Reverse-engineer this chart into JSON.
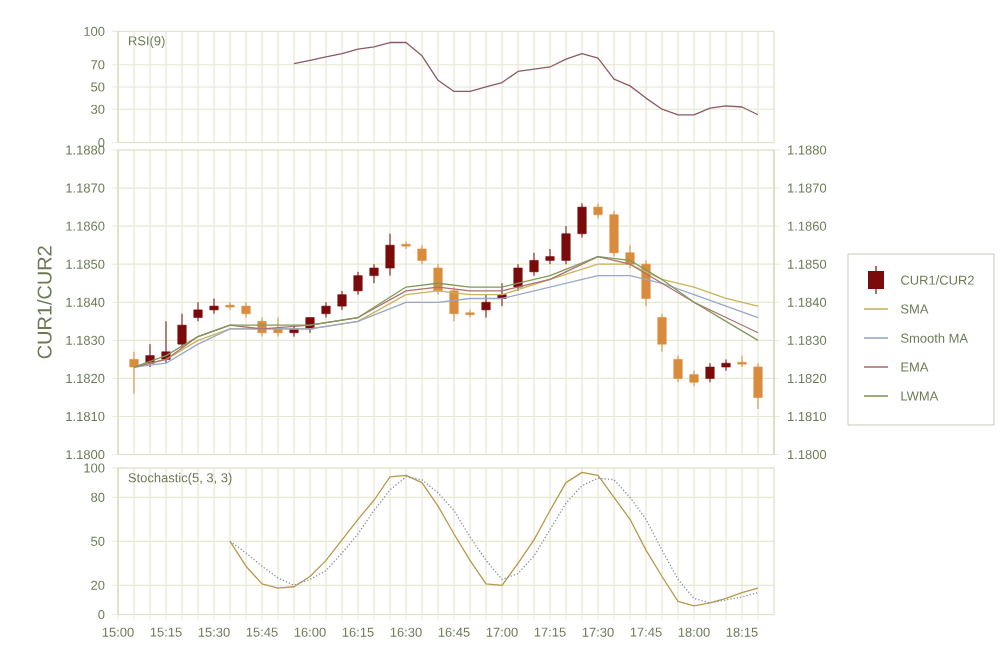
{
  "chart_data": [
    {
      "type": "line",
      "title": "RSI(9)",
      "xlim": [
        15,
        18.4167
      ],
      "ylim": [
        0,
        100
      ],
      "yticks": [
        0,
        30,
        50,
        70,
        100
      ],
      "tick_labels": "y",
      "grid": true,
      "xticks": [
        15,
        15.0833,
        15.1667,
        15.25,
        15.3333,
        15.4167,
        15.5,
        15.5833,
        15.6667,
        15.75,
        15.8333,
        15.9167,
        16,
        16.0833,
        16.1667,
        16.25,
        16.3333,
        16.4167,
        16.5,
        16.5833,
        16.6667,
        16.75,
        16.8333,
        16.9167,
        17,
        17.0833,
        17.1667,
        17.25,
        17.3333,
        17.4167,
        17.5,
        17.5833,
        17.6667,
        17.75,
        17.8333,
        17.9167,
        18,
        18.0833,
        18.1667,
        18.25,
        18.3333
      ],
      "x": [
        15.9167,
        16,
        16.0833,
        16.1667,
        16.25,
        16.3333,
        16.4167,
        16.5,
        16.5833,
        16.6667,
        16.75,
        16.8333,
        16.9167,
        17,
        17.0833,
        17.1667,
        17.25,
        17.3333,
        17.4167,
        17.5,
        17.5833,
        17.6667,
        17.75,
        17.8333,
        17.9167,
        18,
        18.0833,
        18.1667,
        18.25,
        18.3333
      ],
      "values": [
        71,
        74,
        77,
        80,
        84,
        86,
        90,
        90,
        78,
        56,
        46,
        46,
        50,
        54,
        64,
        66,
        68,
        75,
        80,
        76,
        57,
        51,
        40,
        30,
        25,
        25,
        31,
        33,
        32,
        25
      ],
      "color": "#8c5a64"
    },
    {
      "type": "candlestick",
      "ylabel": "CUR1/CUR2",
      "xlim": [
        15,
        18.4167
      ],
      "ylim": [
        1.18,
        1.188
      ],
      "tick_labels": "y",
      "grid": true,
      "legend": "right",
      "xticks": [
        15,
        15.0833,
        15.1667,
        15.25,
        15.3333,
        15.4167,
        15.5,
        15.5833,
        15.6667,
        15.75,
        15.8333,
        15.9167,
        16,
        16.0833,
        16.1667,
        16.25,
        16.3333,
        16.4167,
        16.5,
        16.5833,
        16.6667,
        16.75,
        16.8333,
        16.9167,
        17,
        17.0833,
        17.1667,
        17.25,
        17.3333,
        17.4167,
        17.5,
        17.5833,
        17.6667,
        17.75,
        17.8333,
        17.9167,
        18,
        18.0833,
        18.1667,
        18.25,
        18.3333
      ],
      "yticks": [
        {
          "value": 1.18,
          "label": "1.1800"
        },
        {
          "value": 1.181,
          "label": "1.1810"
        },
        {
          "value": 1.182,
          "label": "1.1820"
        },
        {
          "value": 1.183,
          "label": "1.1830"
        },
        {
          "value": 1.184,
          "label": "1.1840"
        },
        {
          "value": 1.185,
          "label": "1.1850"
        },
        {
          "value": 1.186,
          "label": "1.1860"
        },
        {
          "value": 1.187,
          "label": "1.1870"
        },
        {
          "value": 1.188,
          "label": "1.1880"
        }
      ],
      "y2lim": [
        1.18,
        1.188
      ],
      "y2ticks": [
        {
          "value": 1.18,
          "label": "1.1800"
        },
        {
          "value": 1.181,
          "label": "1.1810"
        },
        {
          "value": 1.182,
          "label": "1.1820"
        },
        {
          "value": 1.183,
          "label": "1.1830"
        },
        {
          "value": 1.184,
          "label": "1.1840"
        },
        {
          "value": 1.185,
          "label": "1.1850"
        },
        {
          "value": 1.186,
          "label": "1.1860"
        },
        {
          "value": 1.187,
          "label": "1.1870"
        },
        {
          "value": 1.188,
          "label": "1.1880"
        }
      ],
      "series": [
        {
          "name": "CUR1/CUR2",
          "type": "candlestick",
          "color": "#7b0a0a",
          "x": [
            15.0833,
            15.1667,
            15.25,
            15.3333,
            15.4167,
            15.5,
            15.5833,
            15.6667,
            15.75,
            15.8333,
            15.9167,
            16,
            16.0833,
            16.1667,
            16.25,
            16.3333,
            16.4167,
            16.5,
            16.5833,
            16.6667,
            16.75,
            16.8333,
            16.9167,
            17,
            17.0833,
            17.1667,
            17.25,
            17.3333,
            17.4167,
            17.5,
            17.5833,
            17.6667,
            17.75,
            17.8333,
            17.9167,
            18,
            18.0833,
            18.1667,
            18.25,
            18.3333
          ],
          "ohlc": [
            [
              1.1825,
              1.1827,
              1.1816,
              1.1823
            ],
            [
              1.1824,
              1.1829,
              1.1823,
              1.1826
            ],
            [
              1.1825,
              1.1835,
              1.1824,
              1.1827
            ],
            [
              1.1829,
              1.1837,
              1.1828,
              1.1834
            ],
            [
              1.1836,
              1.184,
              1.1835,
              1.1838
            ],
            [
              1.1838,
              1.1841,
              1.1837,
              1.1839
            ],
            [
              1.1839,
              1.184,
              1.1838,
              1.1839
            ],
            [
              1.1839,
              1.184,
              1.1836,
              1.1837
            ],
            [
              1.1835,
              1.1836,
              1.1831,
              1.1832
            ],
            [
              1.1833,
              1.1836,
              1.1831,
              1.1832
            ],
            [
              1.1832,
              1.1834,
              1.1831,
              1.1833
            ],
            [
              1.1833,
              1.1836,
              1.1832,
              1.1836
            ],
            [
              1.1837,
              1.184,
              1.1836,
              1.1839
            ],
            [
              1.1839,
              1.1843,
              1.1838,
              1.1842
            ],
            [
              1.1843,
              1.1848,
              1.1842,
              1.1847
            ],
            [
              1.1847,
              1.185,
              1.1845,
              1.1849
            ],
            [
              1.1849,
              1.1858,
              1.1847,
              1.1855
            ],
            [
              1.1855,
              1.1856,
              1.1854,
              1.1855
            ],
            [
              1.1854,
              1.1855,
              1.185,
              1.1851
            ],
            [
              1.1849,
              1.185,
              1.1842,
              1.1843
            ],
            [
              1.1843,
              1.1844,
              1.1835,
              1.1837
            ],
            [
              1.1837,
              1.1838,
              1.1836,
              1.1837
            ],
            [
              1.1838,
              1.1842,
              1.1836,
              1.184
            ],
            [
              1.1841,
              1.1845,
              1.1839,
              1.1842
            ],
            [
              1.1844,
              1.185,
              1.1843,
              1.1849
            ],
            [
              1.1848,
              1.1853,
              1.1847,
              1.1851
            ],
            [
              1.1851,
              1.1854,
              1.185,
              1.1852
            ],
            [
              1.1851,
              1.186,
              1.185,
              1.1858
            ],
            [
              1.1858,
              1.1866,
              1.1857,
              1.1865
            ],
            [
              1.1865,
              1.1866,
              1.1862,
              1.1863
            ],
            [
              1.1863,
              1.1864,
              1.1852,
              1.1853
            ],
            [
              1.1853,
              1.1855,
              1.1849,
              1.185
            ],
            [
              1.185,
              1.1851,
              1.1839,
              1.1841
            ],
            [
              1.1836,
              1.1837,
              1.1827,
              1.1829
            ],
            [
              1.1825,
              1.1826,
              1.1819,
              1.182
            ],
            [
              1.1821,
              1.1822,
              1.1818,
              1.1819
            ],
            [
              1.182,
              1.1824,
              1.1819,
              1.1823
            ],
            [
              1.1823,
              1.1825,
              1.1822,
              1.1824
            ],
            [
              1.1824,
              1.1826,
              1.1823,
              1.1824
            ],
            [
              1.1823,
              1.1824,
              1.1812,
              1.1815
            ]
          ],
          "colors": [
            "#d98c3c",
            "#7b0a0a",
            "#7b0a0a",
            "#7b0a0a",
            "#7b0a0a",
            "#7b0a0a",
            "#d98c3c",
            "#d98c3c",
            "#d98c3c",
            "#d98c3c",
            "#7b0a0a",
            "#7b0a0a",
            "#7b0a0a",
            "#7b0a0a",
            "#7b0a0a",
            "#7b0a0a",
            "#7b0a0a",
            "#d98c3c",
            "#d98c3c",
            "#d98c3c",
            "#d98c3c",
            "#d98c3c",
            "#7b0a0a",
            "#7b0a0a",
            "#7b0a0a",
            "#7b0a0a",
            "#7b0a0a",
            "#7b0a0a",
            "#7b0a0a",
            "#d98c3c",
            "#d98c3c",
            "#d98c3c",
            "#d98c3c",
            "#d98c3c",
            "#d98c3c",
            "#d98c3c",
            "#7b0a0a",
            "#7b0a0a",
            "#d98c3c",
            "#d98c3c"
          ]
        },
        {
          "name": "SMA",
          "type": "line",
          "color": "#c8b45a",
          "x": [
            15.0833,
            15.25,
            15.4167,
            15.5833,
            15.75,
            16,
            16.25,
            16.5,
            16.6667,
            16.8333,
            17,
            17.25,
            17.5,
            17.6667,
            17.8333,
            18,
            18.1667,
            18.3333
          ],
          "values": [
            1.1823,
            1.1825,
            1.183,
            1.1833,
            1.1833,
            1.1833,
            1.1835,
            1.1842,
            1.1843,
            1.1842,
            1.1842,
            1.1846,
            1.185,
            1.185,
            1.1846,
            1.1844,
            1.1841,
            1.1839
          ]
        },
        {
          "name": "Smooth MA",
          "type": "line",
          "color": "#98a8c8",
          "x": [
            15.0833,
            15.25,
            15.4167,
            15.5833,
            15.75,
            16,
            16.25,
            16.5,
            16.6667,
            16.8333,
            17,
            17.25,
            17.5,
            17.6667,
            17.8333,
            18,
            18.1667,
            18.3333
          ],
          "values": [
            1.1823,
            1.1824,
            1.1829,
            1.1833,
            1.1833,
            1.1833,
            1.1835,
            1.184,
            1.184,
            1.1841,
            1.1841,
            1.1844,
            1.1847,
            1.1847,
            1.1845,
            1.1842,
            1.1839,
            1.1836
          ]
        },
        {
          "name": "EMA",
          "type": "line",
          "color": "#b07070",
          "x": [
            15.0833,
            15.25,
            15.4167,
            15.5833,
            15.75,
            16,
            16.25,
            16.5,
            16.6667,
            16.8333,
            17,
            17.25,
            17.5,
            17.6667,
            17.8333,
            18,
            18.1667,
            18.3333
          ],
          "values": [
            1.1823,
            1.1825,
            1.1831,
            1.1834,
            1.1833,
            1.1834,
            1.1836,
            1.1843,
            1.1844,
            1.1843,
            1.1843,
            1.1846,
            1.1852,
            1.185,
            1.1845,
            1.184,
            1.1836,
            1.1832
          ]
        },
        {
          "name": "LWMA",
          "type": "line",
          "color": "#7f9a58",
          "x": [
            15.0833,
            15.25,
            15.4167,
            15.5833,
            15.75,
            16,
            16.25,
            16.5,
            16.6667,
            16.8333,
            17,
            17.25,
            17.5,
            17.6667,
            17.8333,
            18,
            18.1667,
            18.3333
          ],
          "values": [
            1.1823,
            1.1826,
            1.1831,
            1.1834,
            1.1834,
            1.1834,
            1.1836,
            1.1844,
            1.1845,
            1.1844,
            1.1844,
            1.1847,
            1.1852,
            1.1851,
            1.1846,
            1.184,
            1.1835,
            1.183
          ]
        }
      ]
    },
    {
      "type": "line",
      "title": "Stochastic(5, 3, 3)",
      "xlim": [
        15,
        18.4167
      ],
      "ylim": [
        0,
        100
      ],
      "yticks": [
        0,
        20,
        50,
        80,
        100
      ],
      "grid": true,
      "xticks": [
        {
          "value": 15,
          "label": "15:00"
        },
        {
          "value": 15.0833,
          "label": null
        },
        {
          "value": 15.1667,
          "label": null
        },
        {
          "value": 15.25,
          "label": "15:15"
        },
        {
          "value": 15.3333,
          "label": null
        },
        {
          "value": 15.4167,
          "label": null
        },
        {
          "value": 15.5,
          "label": "15:30"
        },
        {
          "value": 15.5833,
          "label": null
        },
        {
          "value": 15.6667,
          "label": null
        },
        {
          "value": 15.75,
          "label": "15:45"
        },
        {
          "value": 15.8333,
          "label": null
        },
        {
          "value": 15.9167,
          "label": null
        },
        {
          "value": 16,
          "label": "16:00"
        },
        {
          "value": 16.0833,
          "label": null
        },
        {
          "value": 16.1667,
          "label": null
        },
        {
          "value": 16.25,
          "label": "16:15"
        },
        {
          "value": 16.3333,
          "label": null
        },
        {
          "value": 16.4167,
          "label": null
        },
        {
          "value": 16.5,
          "label": "16:30"
        },
        {
          "value": 16.5833,
          "label": null
        },
        {
          "value": 16.6667,
          "label": null
        },
        {
          "value": 16.75,
          "label": "16:45"
        },
        {
          "value": 16.8333,
          "label": null
        },
        {
          "value": 16.9167,
          "label": null
        },
        {
          "value": 17,
          "label": "17:00"
        },
        {
          "value": 17.0833,
          "label": null
        },
        {
          "value": 17.1667,
          "label": null
        },
        {
          "value": 17.25,
          "label": "17:15"
        },
        {
          "value": 17.3333,
          "label": null
        },
        {
          "value": 17.4167,
          "label": null
        },
        {
          "value": 17.5,
          "label": "17:30"
        },
        {
          "value": 17.5833,
          "label": null
        },
        {
          "value": 17.6667,
          "label": null
        },
        {
          "value": 17.75,
          "label": "17:45"
        },
        {
          "value": 17.8333,
          "label": null
        },
        {
          "value": 17.9167,
          "label": null
        },
        {
          "value": 18,
          "label": "18:00"
        },
        {
          "value": 18.0833,
          "label": null
        },
        {
          "value": 18.1667,
          "label": null
        },
        {
          "value": 18.25,
          "label": "18:15"
        },
        {
          "value": 18.3333,
          "label": null
        }
      ],
      "series": [
        {
          "type": "line",
          "color": "#b8984a",
          "line_style": "solid",
          "x": [
            15.5833,
            15.6667,
            15.75,
            15.8333,
            15.9167,
            16,
            16.0833,
            16.1667,
            16.25,
            16.3333,
            16.4167,
            16.5,
            16.5833,
            16.6667,
            16.75,
            16.8333,
            16.9167,
            17,
            17.0833,
            17.1667,
            17.25,
            17.3333,
            17.4167,
            17.5,
            17.5833,
            17.6667,
            17.75,
            17.8333,
            17.9167,
            18,
            18.0833,
            18.1667,
            18.25,
            18.3333
          ],
          "values": [
            50,
            33,
            21,
            18,
            19,
            26,
            37,
            51,
            65,
            78,
            94,
            95,
            90,
            74,
            55,
            37,
            21,
            20,
            35,
            51,
            71,
            90,
            97,
            95,
            80,
            65,
            44,
            26,
            9,
            6,
            8,
            11,
            15,
            18
          ]
        },
        {
          "type": "line",
          "color": "#8090a8",
          "line_style": "dotted",
          "x": [
            15.5833,
            15.6667,
            15.75,
            15.8333,
            15.9167,
            16,
            16.0833,
            16.1667,
            16.25,
            16.3333,
            16.4167,
            16.5,
            16.5833,
            16.6667,
            16.75,
            16.8333,
            16.9167,
            17,
            17.0833,
            17.1667,
            17.25,
            17.3333,
            17.4167,
            17.5,
            17.5833,
            17.6667,
            17.75,
            17.8333,
            17.9167,
            18,
            18.0833,
            18.1667,
            18.25,
            18.3333
          ],
          "values": [
            50,
            42,
            33,
            25,
            20,
            24,
            30,
            42,
            55,
            71,
            85,
            94,
            92,
            83,
            71,
            53,
            37,
            24,
            28,
            40,
            58,
            76,
            88,
            93,
            92,
            80,
            65,
            44,
            24,
            11,
            8,
            10,
            12,
            15
          ]
        }
      ]
    }
  ]
}
